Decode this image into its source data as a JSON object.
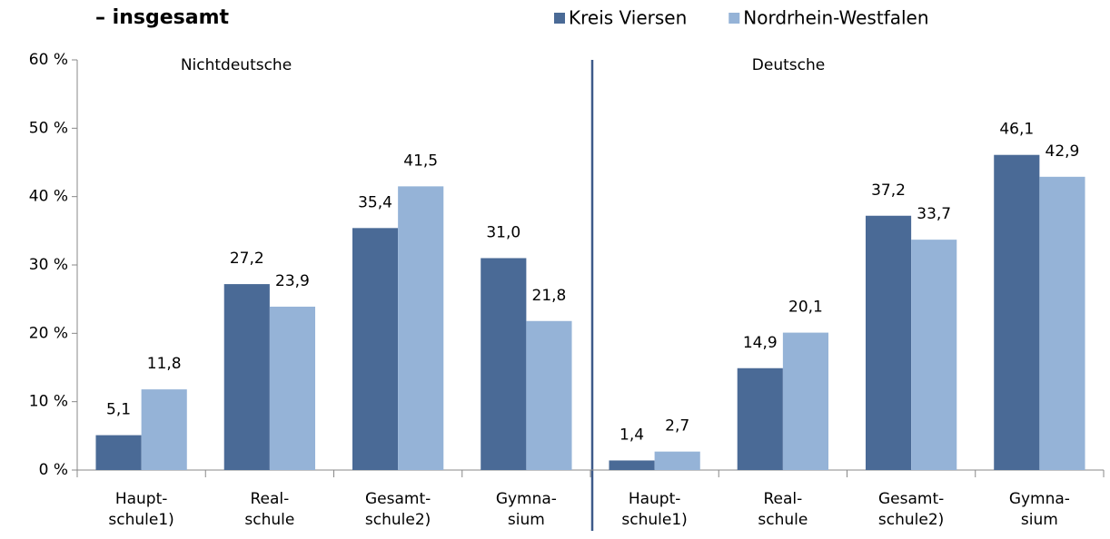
{
  "chart_data": {
    "type": "bar",
    "title": "– insgesamt",
    "categories": [
      "Haupt-\nschule1)",
      "Real-\nschule",
      "Gesamt-\nschule2)",
      "Gymna-\nsium",
      "Haupt-\nschule1)",
      "Real-\nschule",
      "Gesamt-\nschule2)",
      "Gymna-\nsium"
    ],
    "annotations": [
      "Nichtdeutsche",
      "Deutsche"
    ],
    "series": [
      {
        "name": "Kreis Viersen",
        "color": "#4a6a96",
        "values": [
          5.1,
          27.2,
          35.4,
          31.0,
          1.4,
          14.9,
          37.2,
          46.1
        ],
        "value_labels": [
          "5,1",
          "27,2",
          "35,4",
          "31,0",
          "1,4",
          "14,9",
          "37,2",
          "46,1"
        ]
      },
      {
        "name": "Nordrhein-Westfalen",
        "color": "#95b3d7",
        "values": [
          11.8,
          23.9,
          41.5,
          21.8,
          2.7,
          20.1,
          33.7,
          42.9
        ],
        "value_labels": [
          "11,8",
          "23,9",
          "41,5",
          "21,8",
          "2,7",
          "20,1",
          "33,7",
          "42,9"
        ]
      }
    ],
    "ylim": [
      0,
      60
    ],
    "yticks": [
      {
        "value": 0,
        "label": "0 %"
      },
      {
        "value": 10,
        "label": "10 %"
      },
      {
        "value": 20,
        "label": "20 %"
      },
      {
        "value": 30,
        "label": "30 %"
      },
      {
        "value": 40,
        "label": "40 %"
      },
      {
        "value": 50,
        "label": "50 %"
      },
      {
        "value": 60,
        "label": "60 %"
      }
    ],
    "grid": false,
    "legend": "top"
  }
}
